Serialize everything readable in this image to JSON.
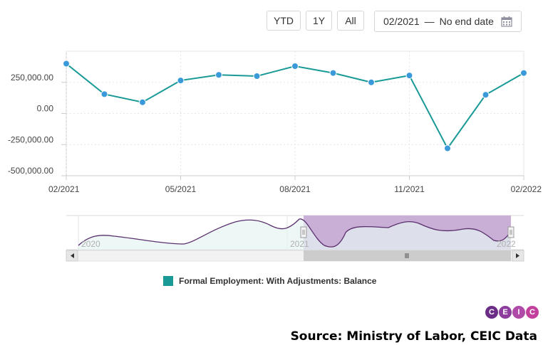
{
  "toolbar": {
    "ytd_label": "YTD",
    "one_year_label": "1Y",
    "all_label": "All",
    "range_start": "02/2021",
    "range_sep": "—",
    "range_end": "No end date"
  },
  "chart_data": {
    "type": "line",
    "title": "",
    "xlabel": "",
    "ylabel": "",
    "x": [
      "02/2021",
      "03/2021",
      "04/2021",
      "05/2021",
      "06/2021",
      "07/2021",
      "08/2021",
      "09/2021",
      "10/2021",
      "11/2021",
      "12/2021",
      "01/2022",
      "02/2022"
    ],
    "x_tick_labels": [
      "02/2021",
      "05/2021",
      "08/2021",
      "11/2021",
      "02/2022"
    ],
    "y_tick_labels": [
      "250,000.00",
      "0.00",
      "-250,000.00",
      "-500,000.00"
    ],
    "y_ticks": [
      250000,
      0,
      -250000,
      -500000
    ],
    "ylim": [
      -500000,
      500000
    ],
    "grid": true,
    "series": [
      {
        "name": "Formal Employment: With Adjustments: Balance",
        "color": "#1a9a96",
        "values": [
          400000,
          155000,
          90000,
          265000,
          310000,
          300000,
          380000,
          325000,
          250000,
          305000,
          -280000,
          150000,
          325000
        ]
      }
    ]
  },
  "navigator": {
    "year_labels": [
      "2020",
      "2021",
      "2022"
    ],
    "scroll_left_icon": "triangle-left-icon",
    "scroll_right_icon": "triangle-right-icon",
    "grip_icon": "grip-icon",
    "selection_color": "#c9aed6",
    "line_color": "#5a2f6e"
  },
  "legend": {
    "label": "Formal Employment: With Adjustments: Balance",
    "color": "#1a9a96"
  },
  "logo": {
    "letters": [
      "C",
      "E",
      "I",
      "C"
    ],
    "colors": [
      "#6b2d86",
      "#8e3b9e",
      "#b04aa8",
      "#c2409b"
    ]
  },
  "source": "Source: Ministry of Labor, CEIC Data"
}
